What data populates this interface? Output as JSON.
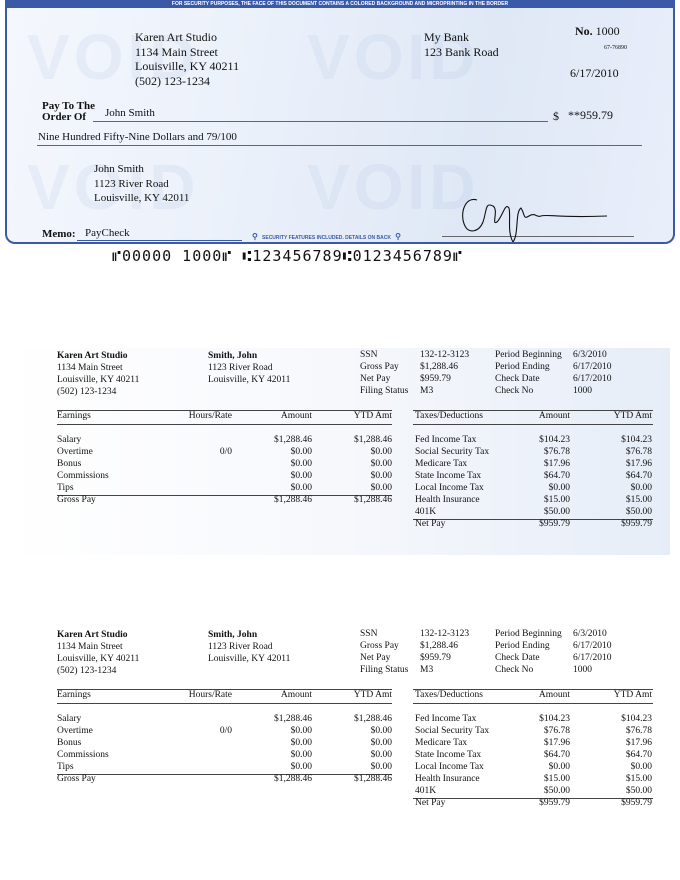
{
  "check": {
    "security_banner": "FOR SECURITY PURPOSES, THE FACE OF THIS DOCUMENT CONTAINS A COLORED BACKGROUND AND MICROPRINTING IN THE BORDER",
    "watermark": "VOID",
    "payer": {
      "name": "Karen Art Studio",
      "street": "1134 Main Street",
      "city": "Louisville, KY 40211",
      "phone": "(502) 123-1234"
    },
    "bank": {
      "name": "My Bank",
      "street": "123 Bank Road"
    },
    "number_label": "No.",
    "number": "1000",
    "routing_fraction": "67-76890",
    "date": "6/17/2010",
    "pay_to_label_1": "Pay To The",
    "pay_to_label_2": "Order Of",
    "payee": "John Smith",
    "currency_symbol": "$",
    "amount": "**959.79",
    "amount_words": "Nine Hundred Fifty-Nine Dollars and 79/100",
    "payee_address": {
      "name": "John Smith",
      "street": "1123 River Road",
      "city": "Louisville, KY 42011"
    },
    "memo_label": "Memo:",
    "memo": "PayCheck",
    "security_features": "SECURITY FEATURES INCLUDED. DETAILS ON BACK",
    "micr": "⑈00000 1000⑈ ⑆123456789⑆0123456789⑈",
    "accent_color": "#3a5aa8"
  },
  "stubs": [
    {
      "company": {
        "name": "Karen Art Studio",
        "street": "1134 Main Street",
        "city": "Louisville, KY 40211",
        "phone": "(502) 123-1234"
      },
      "employee": {
        "name": "Smith, John",
        "street": "1123 River Road",
        "city": "Louisville, KY 42011"
      },
      "info1": [
        {
          "label": "SSN",
          "value": "132-12-3123"
        },
        {
          "label": "Gross Pay",
          "value": "$1,288.46"
        },
        {
          "label": "Net Pay",
          "value": "$959.79"
        },
        {
          "label": "Filing Status",
          "value": "M3"
        }
      ],
      "info2": [
        {
          "label": "Period Beginning",
          "value": "6/3/2010"
        },
        {
          "label": "Period Ending",
          "value": "6/17/2010"
        },
        {
          "label": "Check Date",
          "value": "6/17/2010"
        },
        {
          "label": "Check No",
          "value": "1000"
        }
      ],
      "earnings_headers": [
        "Earnings",
        "Hours/Rate",
        "Amount",
        "YTD Amt"
      ],
      "earnings": [
        [
          "Salary",
          "",
          "$1,288.46",
          "$1,288.46"
        ],
        [
          "Overtime",
          "0/0",
          "$0.00",
          "$0.00"
        ],
        [
          "Bonus",
          "",
          "$0.00",
          "$0.00"
        ],
        [
          "Commissions",
          "",
          "$0.00",
          "$0.00"
        ],
        [
          "Tips",
          "",
          "$0.00",
          "$0.00"
        ]
      ],
      "earnings_total": [
        "Gross Pay",
        "",
        "$1,288.46",
        "$1,288.46"
      ],
      "deduction_headers": [
        "Taxes/Deductions",
        "Amount",
        "YTD Amt"
      ],
      "deductions": [
        [
          "Fed Income Tax",
          "$104.23",
          "$104.23"
        ],
        [
          "Social Security Tax",
          "$76.78",
          "$76.78"
        ],
        [
          "Medicare Tax",
          "$17.96",
          "$17.96"
        ],
        [
          "State Income Tax",
          "$64.70",
          "$64.70"
        ],
        [
          "Local Income Tax",
          "$0.00",
          "$0.00"
        ],
        [
          "Health Insurance",
          "$15.00",
          "$15.00"
        ],
        [
          "401K",
          "$50.00",
          "$50.00"
        ]
      ],
      "deductions_total": [
        "Net Pay",
        "$959.79",
        "$959.79"
      ]
    },
    {
      "company": {
        "name": "Karen Art Studio",
        "street": "1134 Main Street",
        "city": "Louisville, KY 40211",
        "phone": "(502) 123-1234"
      },
      "employee": {
        "name": "Smith, John",
        "street": "1123 River Road",
        "city": "Louisville, KY 42011"
      },
      "info1": [
        {
          "label": "SSN",
          "value": "132-12-3123"
        },
        {
          "label": "Gross Pay",
          "value": "$1,288.46"
        },
        {
          "label": "Net Pay",
          "value": "$959.79"
        },
        {
          "label": "Filing Status",
          "value": "M3"
        }
      ],
      "info2": [
        {
          "label": "Period Beginning",
          "value": "6/3/2010"
        },
        {
          "label": "Period Ending",
          "value": "6/17/2010"
        },
        {
          "label": "Check Date",
          "value": "6/17/2010"
        },
        {
          "label": "Check No",
          "value": "1000"
        }
      ],
      "earnings_headers": [
        "Earnings",
        "Hours/Rate",
        "Amount",
        "YTD Amt"
      ],
      "earnings": [
        [
          "Salary",
          "",
          "$1,288.46",
          "$1,288.46"
        ],
        [
          "Overtime",
          "0/0",
          "$0.00",
          "$0.00"
        ],
        [
          "Bonus",
          "",
          "$0.00",
          "$0.00"
        ],
        [
          "Commissions",
          "",
          "$0.00",
          "$0.00"
        ],
        [
          "Tips",
          "",
          "$0.00",
          "$0.00"
        ]
      ],
      "earnings_total": [
        "Gross Pay",
        "",
        "$1,288.46",
        "$1,288.46"
      ],
      "deduction_headers": [
        "Taxes/Deductions",
        "Amount",
        "YTD Amt"
      ],
      "deductions": [
        [
          "Fed Income Tax",
          "$104.23",
          "$104.23"
        ],
        [
          "Social Security Tax",
          "$76.78",
          "$76.78"
        ],
        [
          "Medicare Tax",
          "$17.96",
          "$17.96"
        ],
        [
          "State Income Tax",
          "$64.70",
          "$64.70"
        ],
        [
          "Local Income Tax",
          "$0.00",
          "$0.00"
        ],
        [
          "Health Insurance",
          "$15.00",
          "$15.00"
        ],
        [
          "401K",
          "$50.00",
          "$50.00"
        ]
      ],
      "deductions_total": [
        "Net Pay",
        "$959.79",
        "$959.79"
      ]
    }
  ]
}
